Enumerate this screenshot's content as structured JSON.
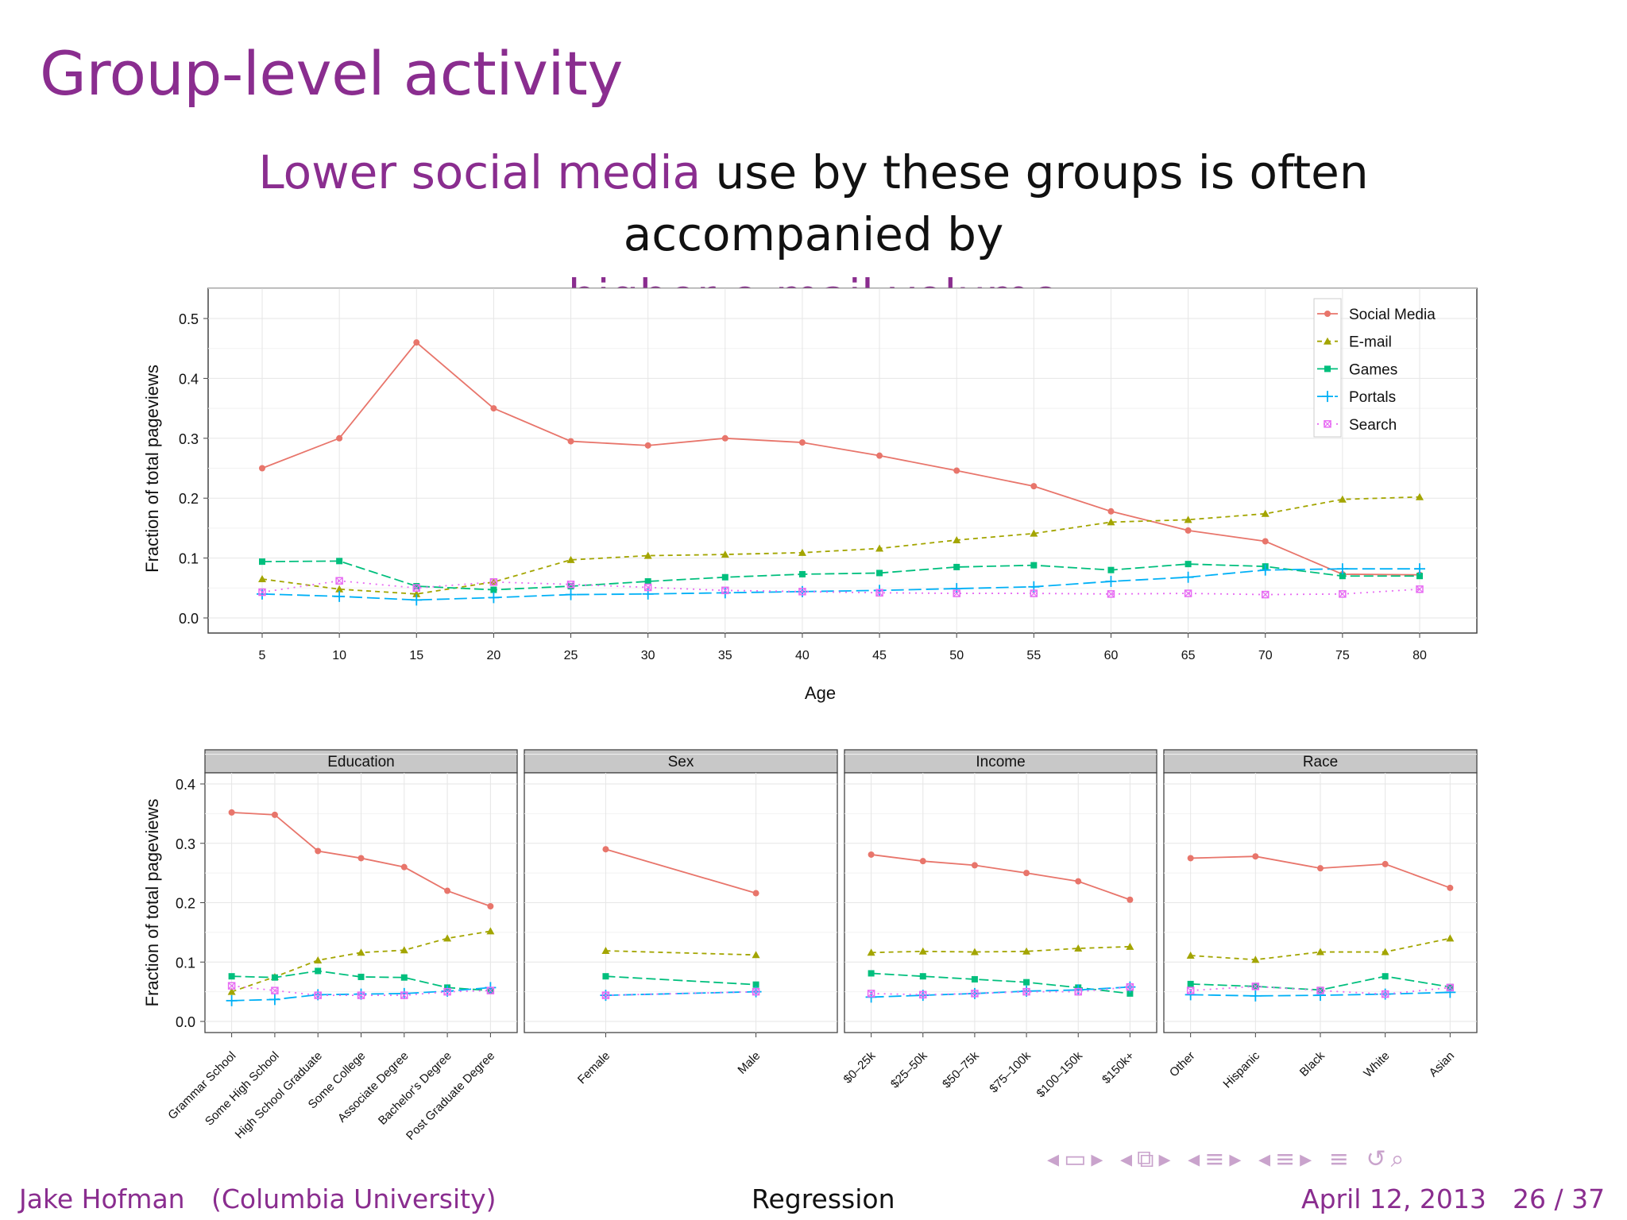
{
  "slide": {
    "title": "Group-level activity",
    "subtitle_part1": "Lower social media",
    "subtitle_part2": " use by these groups is often accompanied by",
    "subtitle_part3": "higher e-mail volume"
  },
  "footer": {
    "author": "Jake Hofman",
    "affiliation": "(Columbia University)",
    "section": "Regression",
    "date": "April 12, 2013",
    "page": "26 / 37"
  },
  "colors": {
    "accent": "#8a2d8f",
    "Social Media": "#e8756b",
    "E-mail": "#a3a500",
    "Games": "#00bf7d",
    "Portals": "#00b0f6",
    "Search": "#e76bf3"
  },
  "nav_icons": [
    "nav-left-icon",
    "frame-icon",
    "nav-right-icon",
    "section-icon",
    "subsection-icon",
    "align-icon",
    "search-icon"
  ],
  "chart_data": [
    {
      "type": "line",
      "xlabel": "Age",
      "ylabel": "Fraction of total pageviews",
      "ylim": [
        0,
        0.5
      ],
      "xlim": [
        0,
        85
      ],
      "grid": true,
      "legend_position": "top-right",
      "x": [
        5,
        10,
        15,
        20,
        25,
        30,
        35,
        40,
        45,
        50,
        55,
        60,
        65,
        70,
        75,
        80
      ],
      "x_ticks": [
        "5",
        "10",
        "15",
        "20",
        "25",
        "30",
        "35",
        "40",
        "45",
        "50",
        "55",
        "60",
        "65",
        "70",
        "75",
        "80"
      ],
      "y_ticks": [
        "0.0",
        "0.1",
        "0.2",
        "0.3",
        "0.4",
        "0.5"
      ],
      "series": [
        {
          "name": "Social Media",
          "values": [
            0.25,
            0.3,
            0.46,
            0.35,
            0.295,
            0.288,
            0.3,
            0.293,
            0.271,
            0.246,
            0.22,
            0.178,
            0.146,
            0.128,
            0.073,
            0.072
          ]
        },
        {
          "name": "E-mail",
          "values": [
            0.065,
            0.048,
            0.04,
            0.06,
            0.097,
            0.104,
            0.106,
            0.109,
            0.116,
            0.13,
            0.141,
            0.16,
            0.164,
            0.174,
            0.198,
            0.202
          ]
        },
        {
          "name": "Games",
          "values": [
            0.094,
            0.095,
            0.053,
            0.047,
            0.053,
            0.061,
            0.068,
            0.073,
            0.075,
            0.085,
            0.088,
            0.08,
            0.09,
            0.086,
            0.07,
            0.07
          ]
        },
        {
          "name": "Portals",
          "values": [
            0.04,
            0.036,
            0.03,
            0.034,
            0.039,
            0.04,
            0.042,
            0.044,
            0.046,
            0.049,
            0.052,
            0.061,
            0.068,
            0.08,
            0.082,
            0.082
          ]
        },
        {
          "name": "Search",
          "values": [
            0.043,
            0.062,
            0.05,
            0.06,
            0.056,
            0.051,
            0.046,
            0.044,
            0.042,
            0.041,
            0.041,
            0.04,
            0.041,
            0.039,
            0.04,
            0.048
          ]
        }
      ]
    },
    {
      "type": "line",
      "ylabel": "Fraction of total pageviews",
      "ylim": [
        0,
        0.4
      ],
      "y_ticks": [
        "0.0",
        "0.1",
        "0.2",
        "0.3",
        "0.4"
      ],
      "grid": true,
      "facets": [
        {
          "name": "Education",
          "categories": [
            "Grammar School",
            "Some High School",
            "High School Graduate",
            "Some College",
            "Associate Degree",
            "Bachelor's Degree",
            "Post Graduate Degree"
          ],
          "series": [
            {
              "name": "Social Media",
              "values": [
                0.352,
                0.348,
                0.287,
                0.275,
                0.26,
                0.22,
                0.194
              ]
            },
            {
              "name": "E-mail",
              "values": [
                0.05,
                0.075,
                0.103,
                0.116,
                0.12,
                0.14,
                0.152
              ]
            },
            {
              "name": "Games",
              "values": [
                0.076,
                0.074,
                0.085,
                0.075,
                0.074,
                0.057,
                0.052
              ]
            },
            {
              "name": "Portals",
              "values": [
                0.035,
                0.037,
                0.045,
                0.046,
                0.047,
                0.051,
                0.057
              ]
            },
            {
              "name": "Search",
              "values": [
                0.06,
                0.052,
                0.044,
                0.044,
                0.044,
                0.05,
                0.052
              ]
            }
          ]
        },
        {
          "name": "Sex",
          "categories": [
            "Female",
            "Male"
          ],
          "series": [
            {
              "name": "Social Media",
              "values": [
                0.29,
                0.216
              ]
            },
            {
              "name": "E-mail",
              "values": [
                0.119,
                0.112
              ]
            },
            {
              "name": "Games",
              "values": [
                0.076,
                0.062
              ]
            },
            {
              "name": "Portals",
              "values": [
                0.044,
                0.05
              ]
            },
            {
              "name": "Search",
              "values": [
                0.044,
                0.05
              ]
            }
          ]
        },
        {
          "name": "Income",
          "categories": [
            "$0–25k",
            "$25–50k",
            "$50–75k",
            "$75–100k",
            "$100–150k",
            "$150k+"
          ],
          "series": [
            {
              "name": "Social Media",
              "values": [
                0.281,
                0.27,
                0.263,
                0.25,
                0.236,
                0.205
              ]
            },
            {
              "name": "E-mail",
              "values": [
                0.116,
                0.118,
                0.117,
                0.118,
                0.123,
                0.126
              ]
            },
            {
              "name": "Games",
              "values": [
                0.081,
                0.076,
                0.071,
                0.066,
                0.057,
                0.047
              ]
            },
            {
              "name": "Portals",
              "values": [
                0.041,
                0.044,
                0.047,
                0.051,
                0.053,
                0.058
              ]
            },
            {
              "name": "Search",
              "values": [
                0.047,
                0.045,
                0.047,
                0.05,
                0.05,
                0.058
              ]
            }
          ]
        },
        {
          "name": "Race",
          "categories": [
            "Other",
            "Hispanic",
            "Black",
            "White",
            "Asian"
          ],
          "series": [
            {
              "name": "Social Media",
              "values": [
                0.275,
                0.278,
                0.258,
                0.265,
                0.225
              ]
            },
            {
              "name": "E-mail",
              "values": [
                0.111,
                0.104,
                0.117,
                0.117,
                0.14
              ]
            },
            {
              "name": "Games",
              "values": [
                0.063,
                0.059,
                0.053,
                0.076,
                0.058
              ]
            },
            {
              "name": "Portals",
              "values": [
                0.045,
                0.043,
                0.044,
                0.046,
                0.049
              ]
            },
            {
              "name": "Search",
              "values": [
                0.052,
                0.059,
                0.052,
                0.046,
                0.057
              ]
            }
          ]
        }
      ]
    }
  ]
}
